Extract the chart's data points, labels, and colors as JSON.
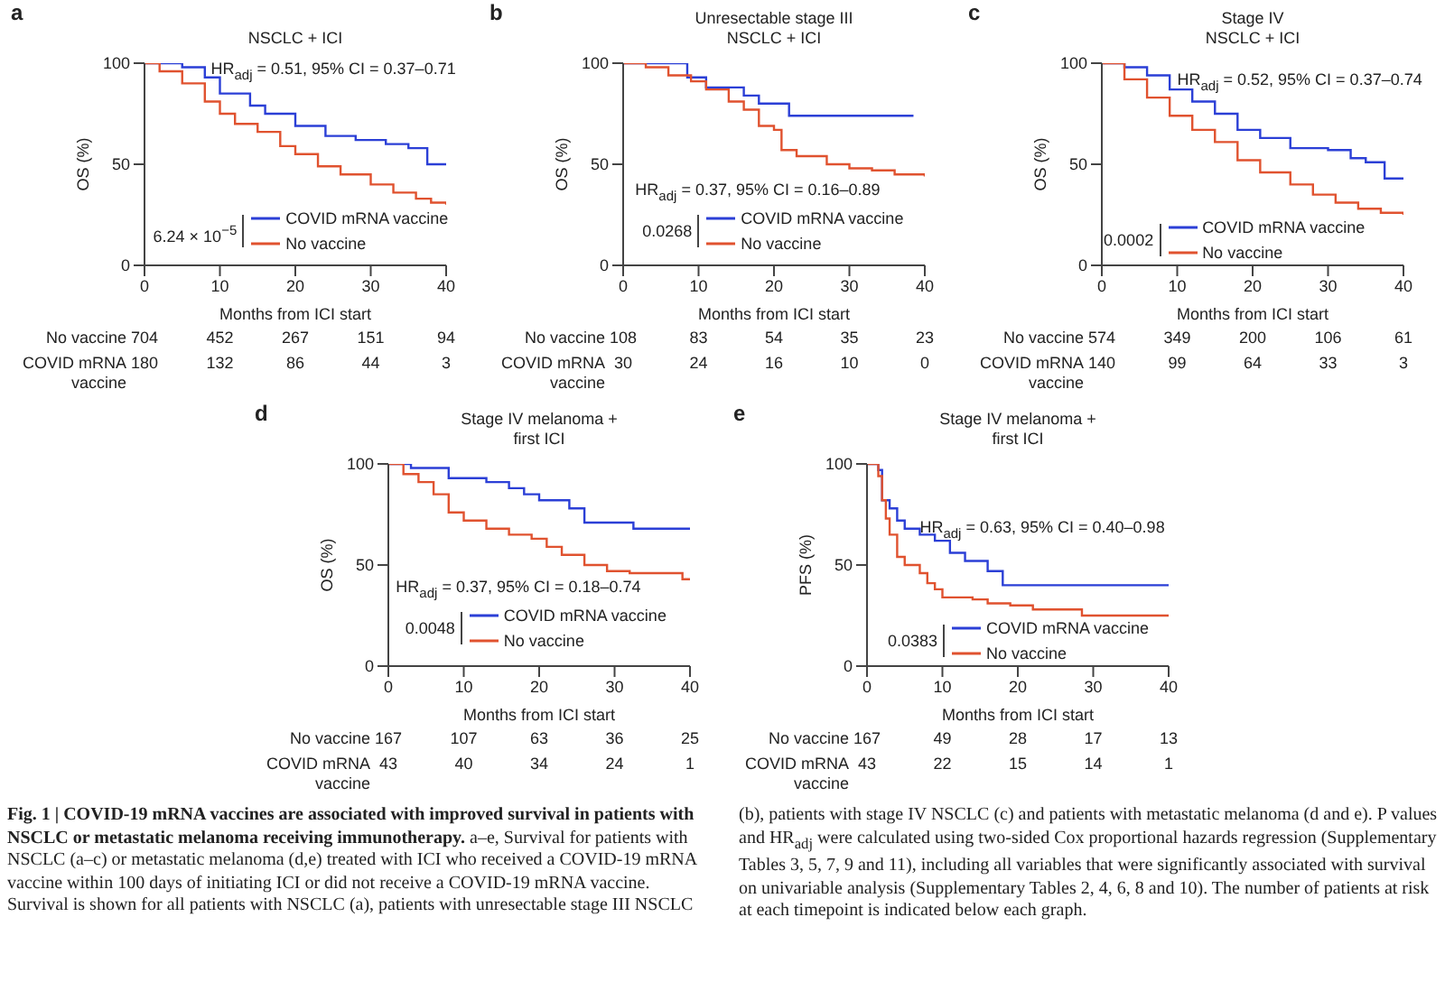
{
  "chart_data": [
    {
      "type": "step",
      "title": "NSCLC + ICI",
      "xlabel": "Months from ICI start",
      "ylabel": "OS (%)",
      "xlim": [
        0,
        40
      ],
      "xticks": [
        0,
        10,
        20,
        30,
        40
      ],
      "ylim": [
        0,
        100
      ],
      "yticks": [
        0,
        50,
        100
      ],
      "legend": "bottom",
      "series": [
        {
          "name": "COVID mRNA vaccine",
          "color": "#2b3fd6",
          "x": [
            0,
            5,
            8,
            10,
            14,
            16,
            20,
            24,
            28,
            32,
            35,
            37.5,
            40
          ],
          "values": [
            100,
            98,
            93,
            85,
            79,
            75,
            69,
            64,
            62,
            60,
            58,
            50,
            50
          ]
        },
        {
          "name": "No vaccine",
          "color": "#e0522f",
          "x": [
            0,
            2,
            5,
            8,
            10,
            12,
            15,
            18,
            20,
            23,
            26,
            30,
            33,
            36,
            38,
            40
          ],
          "values": [
            100,
            96,
            90,
            81,
            75,
            70,
            66,
            59,
            55,
            49,
            45,
            40,
            36,
            33,
            31,
            30
          ]
        }
      ],
      "annotations": [
        "a",
        "HR$_{adj}$ = 0.51, 95% CI = 0.37–0.71",
        "6.24 × 10$^{−5}$",
        "No vaccine",
        "704",
        "452",
        "267",
        "151",
        "94",
        "COVID mRNA vaccine",
        "180",
        "132",
        "86",
        "44",
        "3"
      ]
    },
    {
      "type": "step",
      "title": "Unresectable stage III\nNSCLC + ICI",
      "xlabel": "Months from ICI start",
      "ylabel": "OS (%)",
      "xlim": [
        0,
        40
      ],
      "xticks": [
        0,
        10,
        20,
        30,
        40
      ],
      "ylim": [
        0,
        100
      ],
      "yticks": [
        0,
        50,
        100
      ],
      "legend": "bottom",
      "series": [
        {
          "name": "COVID mRNA vaccine",
          "color": "#2b3fd6",
          "x": [
            0,
            8.5,
            11,
            16,
            18,
            22,
            38.5
          ],
          "values": [
            100,
            93,
            88,
            84,
            80,
            74,
            74
          ]
        },
        {
          "name": "No vaccine",
          "color": "#e0522f",
          "x": [
            0,
            3,
            6,
            9,
            11,
            14,
            16,
            18,
            20,
            21,
            23,
            27,
            30,
            33,
            36,
            40
          ],
          "values": [
            100,
            98,
            94,
            91,
            87,
            81,
            77,
            69,
            67,
            57,
            54,
            50,
            48,
            47,
            45,
            44
          ]
        }
      ],
      "annotations": [
        "b",
        "HR$_{adj}$ = 0.37, 95% CI = 0.16–0.89",
        "0.0268",
        "No vaccine",
        "108",
        "83",
        "54",
        "35",
        "23",
        "COVID mRNA vaccine",
        "30",
        "24",
        "16",
        "10",
        "0"
      ]
    },
    {
      "type": "step",
      "title": "Stage IV\nNSCLC + ICI",
      "xlabel": "Months from ICI start",
      "ylabel": "OS (%)",
      "xlim": [
        0,
        40
      ],
      "xticks": [
        0,
        10,
        20,
        30,
        40
      ],
      "ylim": [
        0,
        100
      ],
      "yticks": [
        0,
        50,
        100
      ],
      "legend": "bottom",
      "series": [
        {
          "name": "COVID mRNA vaccine",
          "color": "#2b3fd6",
          "x": [
            0,
            3,
            6,
            9,
            12,
            15,
            18,
            21,
            25,
            30,
            33,
            35,
            37.5,
            40
          ],
          "values": [
            100,
            98,
            94,
            87,
            81,
            75,
            67,
            63,
            58,
            57,
            53,
            51,
            43,
            43
          ]
        },
        {
          "name": "No vaccine",
          "color": "#e0522f",
          "x": [
            0,
            3,
            6,
            9,
            12,
            15,
            18,
            21,
            25,
            28,
            31,
            34,
            37,
            40
          ],
          "values": [
            100,
            92,
            83,
            74,
            67,
            61,
            52,
            46,
            40,
            35,
            31,
            28,
            26,
            25
          ]
        }
      ],
      "annotations": [
        "c",
        "HR$_{adj}$ = 0.52, 95% CI = 0.37–0.74",
        "0.0002",
        "No vaccine",
        "574",
        "349",
        "200",
        "106",
        "61",
        "COVID mRNA vaccine",
        "140",
        "99",
        "64",
        "33",
        "3"
      ]
    },
    {
      "type": "step",
      "title": "Stage IV melanoma +\nfirst ICI",
      "xlabel": "Months from ICI start",
      "ylabel": "OS (%)",
      "xlim": [
        0,
        40
      ],
      "xticks": [
        0,
        10,
        20,
        30,
        40
      ],
      "ylim": [
        0,
        100
      ],
      "yticks": [
        0,
        50,
        100
      ],
      "legend": "bottom",
      "series": [
        {
          "name": "COVID mRNA vaccine",
          "color": "#2b3fd6",
          "x": [
            0,
            3,
            8,
            13,
            16,
            18,
            20,
            24,
            26,
            32.5,
            40
          ],
          "values": [
            100,
            98,
            93,
            91,
            88,
            85,
            82,
            78,
            71,
            68,
            68
          ]
        },
        {
          "name": "No vaccine",
          "color": "#e0522f",
          "x": [
            0,
            2,
            4,
            6,
            8,
            10,
            13,
            16,
            19,
            21,
            23,
            26,
            29,
            32,
            38,
            39,
            40
          ],
          "values": [
            100,
            95,
            91,
            85,
            76,
            72,
            68,
            65,
            63,
            59,
            55,
            50,
            47,
            46,
            46,
            43,
            43
          ]
        }
      ],
      "annotations": [
        "d",
        "HR$_{adj}$ = 0.37, 95% CI = 0.18–0.74",
        "0.0048",
        "No vaccine",
        "167",
        "107",
        "63",
        "36",
        "25",
        "COVID mRNA vaccine",
        "43",
        "40",
        "34",
        "24",
        "1"
      ]
    },
    {
      "type": "step",
      "title": "Stage IV melanoma +\nfirst ICI",
      "xlabel": "Months from ICI start",
      "ylabel": "PFS (%)",
      "xlim": [
        0,
        40
      ],
      "xticks": [
        0,
        10,
        20,
        30,
        40
      ],
      "ylim": [
        0,
        100
      ],
      "yticks": [
        0,
        50,
        100
      ],
      "legend": "bottom",
      "series": [
        {
          "name": "COVID mRNA vaccine",
          "color": "#2b3fd6",
          "x": [
            0,
            1.5,
            2,
            3,
            4,
            5,
            7,
            9,
            11,
            13,
            16,
            18,
            40
          ],
          "values": [
            100,
            97,
            82,
            78,
            72,
            68,
            65,
            62,
            56,
            52,
            47,
            40,
            40
          ]
        },
        {
          "name": "No vaccine",
          "color": "#e0522f",
          "x": [
            0,
            1.5,
            2,
            2.5,
            3,
            4,
            5,
            7,
            8,
            9,
            10,
            14,
            16,
            19,
            22,
            28.5,
            40
          ],
          "values": [
            100,
            94,
            82,
            73,
            65,
            54,
            50,
            46,
            41,
            38,
            34,
            33,
            31,
            30,
            28,
            25,
            25
          ]
        }
      ],
      "annotations": [
        "e",
        "HR$_{adj}$ = 0.63, 95% CI = 0.40–0.98",
        "0.0383",
        "No vaccine",
        "167",
        "49",
        "28",
        "17",
        "13",
        "COVID mRNA vaccine",
        "43",
        "22",
        "15",
        "14",
        "1"
      ]
    },
    {
      "type": "other",
      "title": "Fig. 1 | COVID-19 mRNA vaccines are associated with improved survival in patients with NSCLC or metastatic melanoma receiving immunotherapy.",
      "annotations": [
        "a–e, Survival for patients with NSCLC (a–c) or metastatic melanoma (d,e) treated with ICI who received a COVID-19 mRNA vaccine within 100 days of initiating ICI or did not receive a COVID-19 mRNA vaccine. Survival is shown for all patients with NSCLC (a), patients with unresectable stage III NSCLC (b), patients with stage IV NSCLC (c) and patients with metastatic melanoma (d and e). P values and HR$_{adj}$ were calculated using two-sided Cox proportional hazards regression (Supplementary Tables 3, 5, 7, 9 and 11), including all variables that were significantly associated with survival on univariable analysis (Supplementary Tables 2, 4, 6, 8 and 10). The number of patients at risk at each timepoint is indicated below each graph."
      ]
    }
  ]
}
